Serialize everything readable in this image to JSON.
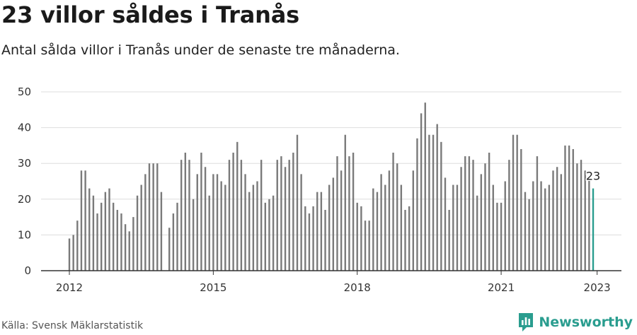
{
  "title": "23 villor såldes i Tranås",
  "subtitle": "Antal sålda villor i Tranås under de senaste tre månaderna.",
  "source": "Källa: Svensk Mäklarstatistik",
  "brand": {
    "name": "Newsworthy",
    "color": "#2a9d8f",
    "icon": "chart-logo-icon"
  },
  "colors": {
    "bar": "#7a7a7a",
    "highlight": "#2a9d8f",
    "grid": "#dddddd",
    "axis": "#333333"
  },
  "chart_data": {
    "type": "bar",
    "title": "23 villor såldes i Tranås",
    "subtitle": "Antal sålda villor i Tranås under de senaste tre månaderna.",
    "xlabel": "",
    "ylabel": "",
    "ylim": [
      0,
      50
    ],
    "yticks": [
      0,
      10,
      20,
      30,
      40,
      50
    ],
    "x_tick_labels": [
      "2012",
      "2015",
      "2018",
      "2021",
      "2023"
    ],
    "grid": true,
    "x_start": "2012-01",
    "x_end": "2023-01",
    "highlight_label": "23",
    "series": [
      {
        "values": [
          9,
          10,
          14,
          28,
          28,
          23,
          21,
          16,
          19,
          22,
          23,
          19,
          17,
          16,
          13,
          11,
          15,
          21,
          24,
          27,
          30,
          30,
          30,
          22,
          null,
          12,
          16,
          19,
          31,
          33,
          31,
          20,
          27,
          33,
          29,
          21,
          27,
          27,
          25,
          24,
          31,
          33,
          36,
          31,
          27,
          22,
          24,
          25,
          31,
          19,
          20,
          21,
          31,
          32,
          29,
          31,
          33,
          38,
          27,
          18,
          16,
          18,
          22,
          22,
          17,
          24,
          26,
          32,
          28,
          38,
          32,
          33,
          19,
          18,
          14,
          14,
          23,
          22,
          27,
          24,
          28,
          33,
          30,
          24,
          17,
          18,
          28,
          37,
          44,
          47,
          38,
          38,
          41,
          36,
          26,
          17,
          24,
          24,
          29,
          32,
          32,
          31,
          21,
          27,
          30,
          33,
          24,
          19,
          19,
          25,
          31,
          38,
          38,
          34,
          22,
          20,
          25,
          32,
          25,
          23,
          24,
          28,
          29,
          27,
          35,
          35,
          34,
          30,
          31,
          28,
          26,
          23
        ]
      }
    ]
  }
}
